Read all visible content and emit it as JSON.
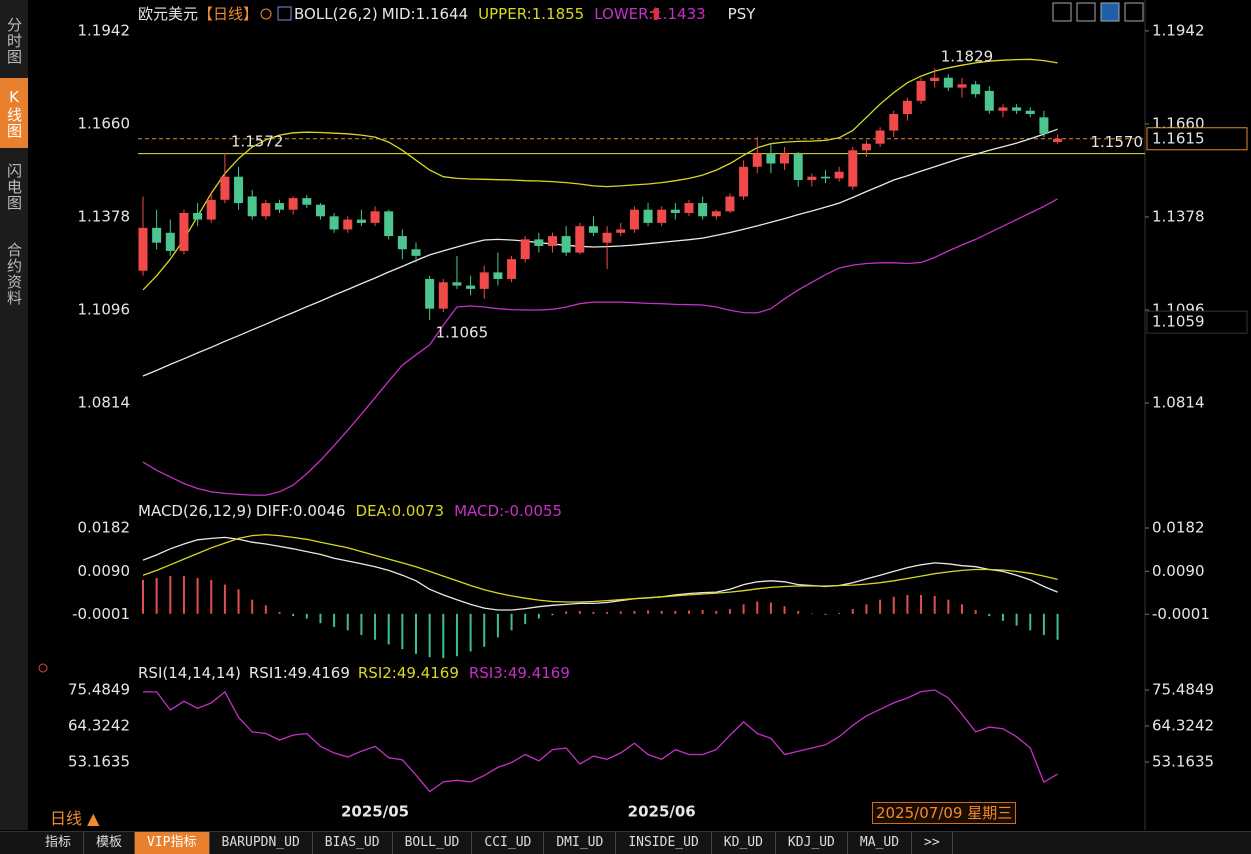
{
  "sidebar": [
    "分时图",
    "K线图",
    "闪电图",
    "合约资料"
  ],
  "period_label": "日线 ▲",
  "cursor_date": "2025/07/09 星期三",
  "toolbar": [
    "指标",
    "模板",
    "VIP指标",
    "BARUPDN_UD",
    "BIAS_UD",
    "BOLL_UD",
    "CCI_UD",
    "DMI_UD",
    "INSIDE_UD",
    "KD_UD",
    "KDJ_UD",
    "MA_UD",
    ">>"
  ],
  "chart_data": [
    {
      "type": "candlestick",
      "title": "欧元美元",
      "period": "【日线】",
      "indicator": "BOLL(26,2)",
      "next_indicator": "PSY",
      "up_color": "#f04a4a",
      "down_color": "#4cc58f",
      "ylim": [
        1.052,
        1.1975
      ],
      "yticks": [
        1.1942,
        {
          "value": 1.166,
          "label": "1.1660"
        },
        1.1378,
        1.1096,
        1.0814
      ],
      "categories": [
        null,
        null,
        null,
        null,
        null,
        null,
        null,
        null,
        null,
        null,
        null,
        null,
        null,
        null,
        null,
        null,
        null,
        "2025/05",
        null,
        null,
        null,
        null,
        null,
        null,
        null,
        null,
        null,
        null,
        null,
        null,
        null,
        null,
        null,
        null,
        null,
        null,
        null,
        null,
        "2025/06",
        null,
        null,
        null,
        null,
        null,
        null,
        null,
        null,
        null,
        null,
        null,
        null,
        null,
        null,
        null,
        null,
        null,
        null,
        null,
        null,
        null,
        null,
        null,
        null,
        null,
        null,
        null,
        null,
        null
      ],
      "open": [
        1.1215,
        1.1345,
        1.133,
        1.1275,
        1.139,
        1.137,
        1.143,
        1.15,
        1.144,
        1.138,
        1.142,
        1.14,
        1.1435,
        1.1415,
        1.138,
        1.134,
        1.137,
        1.136,
        1.1395,
        1.132,
        1.128,
        1.119,
        1.11,
        1.118,
        1.117,
        1.116,
        1.121,
        1.119,
        1.125,
        1.131,
        1.129,
        1.132,
        1.127,
        1.135,
        1.13,
        1.133,
        1.134,
        1.14,
        1.136,
        1.14,
        1.139,
        1.142,
        1.138,
        1.1395,
        1.144,
        1.153,
        1.157,
        1.154,
        1.157,
        1.149,
        1.15,
        1.1495,
        1.147,
        1.158,
        1.16,
        1.164,
        1.169,
        1.173,
        1.179,
        1.18,
        1.177,
        1.178,
        1.176,
        1.17,
        1.171,
        1.17,
        1.168,
        1.1605
      ],
      "high": [
        1.144,
        1.14,
        1.137,
        1.14,
        1.142,
        1.145,
        1.1572,
        1.153,
        1.146,
        1.143,
        1.143,
        1.144,
        1.1445,
        1.142,
        1.139,
        1.138,
        1.14,
        1.141,
        1.14,
        1.134,
        1.13,
        1.12,
        1.119,
        1.126,
        1.12,
        1.123,
        1.127,
        1.126,
        1.132,
        1.133,
        1.133,
        1.135,
        1.136,
        1.138,
        1.135,
        1.136,
        1.141,
        1.142,
        1.141,
        1.142,
        1.143,
        1.144,
        1.14,
        1.145,
        1.155,
        1.162,
        1.16,
        1.159,
        1.1575,
        1.151,
        1.152,
        1.153,
        1.159,
        1.161,
        1.165,
        1.17,
        1.174,
        1.18,
        1.1829,
        1.181,
        1.18,
        1.179,
        1.1775,
        1.172,
        1.172,
        1.171,
        1.17,
        1.1628
      ],
      "low": [
        1.12,
        1.128,
        1.126,
        1.1265,
        1.135,
        1.136,
        1.142,
        1.14,
        1.137,
        1.137,
        1.139,
        1.1385,
        1.1405,
        1.137,
        1.133,
        1.133,
        1.135,
        1.135,
        1.131,
        1.125,
        1.124,
        1.1065,
        1.109,
        1.116,
        1.114,
        1.113,
        1.117,
        1.118,
        1.124,
        1.127,
        1.127,
        1.126,
        1.1265,
        1.132,
        1.122,
        1.132,
        1.133,
        1.135,
        1.135,
        1.137,
        1.138,
        1.137,
        1.137,
        1.139,
        1.143,
        1.151,
        1.151,
        1.152,
        1.147,
        1.147,
        1.148,
        1.1485,
        1.146,
        1.156,
        1.159,
        1.162,
        1.167,
        1.172,
        1.177,
        1.176,
        1.174,
        1.174,
        1.169,
        1.168,
        1.169,
        1.168,
        1.162,
        1.16
      ],
      "close": [
        1.1345,
        1.13,
        1.1275,
        1.139,
        1.137,
        1.143,
        1.15,
        1.142,
        1.138,
        1.142,
        1.14,
        1.1435,
        1.1415,
        1.138,
        1.134,
        1.137,
        1.136,
        1.1395,
        1.132,
        1.128,
        1.126,
        1.11,
        1.118,
        1.117,
        1.116,
        1.121,
        1.119,
        1.125,
        1.131,
        1.129,
        1.132,
        1.127,
        1.135,
        1.133,
        1.133,
        1.134,
        1.14,
        1.136,
        1.14,
        1.139,
        1.142,
        1.138,
        1.1395,
        1.144,
        1.153,
        1.157,
        1.154,
        1.157,
        1.149,
        1.15,
        1.1495,
        1.1515,
        1.158,
        1.16,
        1.164,
        1.169,
        1.173,
        1.179,
        1.18,
        1.177,
        1.178,
        1.175,
        1.17,
        1.171,
        1.17,
        1.169,
        1.163,
        1.1615
      ],
      "series": [
        {
          "name": "MID:1.1644",
          "color": "#e8e8e8",
          "values": [
            1.0896,
            1.0913,
            1.0931,
            1.0948,
            1.0966,
            1.0983,
            1.1001,
            1.1018,
            1.1036,
            1.1053,
            1.1071,
            1.1088,
            1.1106,
            1.1123,
            1.1141,
            1.1158,
            1.1176,
            1.1193,
            1.1211,
            1.1228,
            1.1246,
            1.1263,
            1.1275,
            1.1287,
            1.1298,
            1.1308,
            1.131,
            1.1308,
            1.1305,
            1.13,
            1.1296,
            1.1292,
            1.1289,
            1.1287,
            1.1288,
            1.129,
            1.1293,
            1.1297,
            1.1301,
            1.1305,
            1.1309,
            1.1314,
            1.1322,
            1.1331,
            1.1341,
            1.1351,
            1.1362,
            1.1373,
            1.1385,
            1.1396,
            1.1408,
            1.142,
            1.1437,
            1.1455,
            1.1472,
            1.149,
            1.1503,
            1.1517,
            1.153,
            1.1544,
            1.1557,
            1.1568,
            1.158,
            1.1591,
            1.1602,
            1.1615,
            1.1629,
            1.1644
          ]
        },
        {
          "name": "UPPER:1.1855",
          "color": "#d8d820",
          "values": [
            1.1157,
            1.12,
            1.125,
            1.131,
            1.138,
            1.145,
            1.151,
            1.1555,
            1.159,
            1.1612,
            1.1626,
            1.1633,
            1.1635,
            1.1634,
            1.1632,
            1.163,
            1.1626,
            1.162,
            1.1605,
            1.158,
            1.155,
            1.152,
            1.15,
            1.1495,
            1.1493,
            1.1492,
            1.1491,
            1.149,
            1.1488,
            1.1487,
            1.1485,
            1.1482,
            1.1478,
            1.1472,
            1.147,
            1.1472,
            1.1475,
            1.1478,
            1.1482,
            1.1488,
            1.1495,
            1.1505,
            1.152,
            1.154,
            1.1565,
            1.1588,
            1.16,
            1.1605,
            1.1607,
            1.1608,
            1.161,
            1.1618,
            1.164,
            1.168,
            1.172,
            1.1755,
            1.1785,
            1.1805,
            1.182,
            1.183,
            1.1838,
            1.1845,
            1.185,
            1.1853,
            1.1855,
            1.1856,
            1.1852,
            1.1845
          ]
        },
        {
          "name": "LOWER:1.1433",
          "color": "#c530c5",
          "values": [
            1.0635,
            1.061,
            1.059,
            1.057,
            1.0555,
            1.0545,
            1.054,
            1.0537,
            1.0535,
            1.0535,
            1.0545,
            1.0565,
            1.06,
            1.064,
            1.0685,
            1.0732,
            1.078,
            1.083,
            1.088,
            1.0929,
            1.096,
            1.099,
            1.105,
            1.1105,
            1.1108,
            1.1105,
            1.11,
            1.1097,
            1.1096,
            1.1096,
            1.1098,
            1.1105,
            1.1115,
            1.112,
            1.112,
            1.112,
            1.1118,
            1.1116,
            1.1115,
            1.1113,
            1.1112,
            1.1111,
            1.1105,
            1.1095,
            1.1088,
            1.1087,
            1.11,
            1.113,
            1.1157,
            1.118,
            1.1203,
            1.1223,
            1.1232,
            1.1237,
            1.1239,
            1.1239,
            1.1237,
            1.124,
            1.1255,
            1.1275,
            1.1293,
            1.131,
            1.133,
            1.135,
            1.137,
            1.139,
            1.141,
            1.1433
          ]
        }
      ],
      "annotations": [
        "1.1572",
        "1.1829",
        "1.1065"
      ],
      "hlines": [
        {
          "value": 1.157,
          "label": "1.1570",
          "color": "#e8e030",
          "dashed": false,
          "box": false
        },
        {
          "value": 1.1615,
          "label": "1.1615",
          "color": "#e08a3a",
          "dashed": true,
          "box": true
        }
      ],
      "markers": [
        {
          "value": 1.1059,
          "label": "1.1059",
          "color": "#e08a3a"
        }
      ]
    },
    {
      "type": "line",
      "indicator": "MACD(26,12,9)",
      "ylim": [
        -0.0098,
        0.0199
      ],
      "yticks": [
        0.0182,
        {
          "value": 0.009,
          "label": "0.0090"
        },
        -0.0001
      ],
      "series": [
        {
          "name": "DIFF:0.0046",
          "color": "#e8e8e8",
          "type": "line",
          "values": [
            0.0114,
            0.0125,
            0.0138,
            0.0148,
            0.0157,
            0.016,
            0.0162,
            0.0158,
            0.0152,
            0.0148,
            0.0143,
            0.0138,
            0.0132,
            0.0126,
            0.0118,
            0.0112,
            0.0106,
            0.01,
            0.0092,
            0.0082,
            0.007,
            0.0052,
            0.004,
            0.003,
            0.002,
            0.0012,
            0.0008,
            0.0008,
            0.0011,
            0.0015,
            0.0018,
            0.002,
            0.0022,
            0.0022,
            0.0024,
            0.0028,
            0.0032,
            0.0034,
            0.0036,
            0.004,
            0.0043,
            0.0045,
            0.0046,
            0.0052,
            0.0062,
            0.0068,
            0.007,
            0.0068,
            0.0062,
            0.006,
            0.0058,
            0.006,
            0.0066,
            0.0074,
            0.0082,
            0.009,
            0.0098,
            0.0104,
            0.0108,
            0.0106,
            0.0102,
            0.01,
            0.0094,
            0.009,
            0.0082,
            0.0072,
            0.0058,
            0.0046
          ]
        },
        {
          "name": "DEA:0.0073",
          "color": "#d8d820",
          "type": "line",
          "values": [
            0.0082,
            0.0092,
            0.0104,
            0.0116,
            0.0128,
            0.014,
            0.015,
            0.016,
            0.0166,
            0.0168,
            0.0166,
            0.0162,
            0.0158,
            0.0152,
            0.0146,
            0.014,
            0.0132,
            0.0124,
            0.0116,
            0.0108,
            0.01,
            0.009,
            0.008,
            0.007,
            0.006,
            0.0051,
            0.0044,
            0.0038,
            0.0033,
            0.0029,
            0.0026,
            0.0025,
            0.0025,
            0.0026,
            0.0028,
            0.003,
            0.0032,
            0.0034,
            0.0036,
            0.0038,
            0.004,
            0.0042,
            0.0044,
            0.0046,
            0.0049,
            0.0053,
            0.0056,
            0.0058,
            0.0059,
            0.0059,
            0.0059,
            0.006,
            0.0061,
            0.0063,
            0.0066,
            0.007,
            0.0075,
            0.008,
            0.0085,
            0.0089,
            0.0092,
            0.0094,
            0.0094,
            0.0093,
            0.009,
            0.0086,
            0.008,
            0.0073
          ]
        },
        {
          "name": "MACD:-0.0055",
          "color": "#c530c5",
          "type": "bar",
          "up_color": "#e05050",
          "down_color": "#3fbf8f",
          "values": [
            0.0072,
            0.0076,
            0.008,
            0.008,
            0.0076,
            0.0072,
            0.0062,
            0.0052,
            0.003,
            0.0018,
            0.0004,
            -0.0005,
            -0.001,
            -0.002,
            -0.0028,
            -0.0035,
            -0.0045,
            -0.0055,
            -0.0065,
            -0.0075,
            -0.0085,
            -0.0092,
            -0.0094,
            -0.009,
            -0.008,
            -0.007,
            -0.005,
            -0.0035,
            -0.0022,
            -0.001,
            -0.0003,
            0.0005,
            0.0006,
            0.0004,
            0.0004,
            0.0005,
            0.0006,
            0.0007,
            0.0006,
            0.0006,
            0.0007,
            0.0008,
            0.0006,
            0.001,
            0.002,
            0.0026,
            0.0024,
            0.0016,
            0.0006,
            0.0001,
            -0.0002,
            0.0002,
            0.001,
            0.002,
            0.003,
            0.0036,
            0.004,
            0.004,
            0.0038,
            0.003,
            0.002,
            0.0008,
            -0.0005,
            -0.0015,
            -0.0025,
            -0.0035,
            -0.0045,
            -0.0055
          ]
        }
      ]
    },
    {
      "type": "line",
      "indicator": "RSI(14,14,14)",
      "ylim": [
        41.38,
        78.59
      ],
      "yticks": [
        75.4849,
        64.3242,
        53.1635
      ],
      "legend_extra": [
        {
          "text": "RSI1:49.4169",
          "color": "#e8e8e8"
        },
        {
          "text": "RSI2:49.4169",
          "color": "#d8d820"
        }
      ],
      "series": [
        {
          "name": "RSI3:49.4169",
          "color": "#c530c5",
          "type": "line",
          "values": [
            74.9,
            74.9,
            69.3,
            72.0,
            69.8,
            71.5,
            74.9,
            67.0,
            62.5,
            62.0,
            60.0,
            61.5,
            62.0,
            58.0,
            56.0,
            54.7,
            56.5,
            58.0,
            54.5,
            53.8,
            49.1,
            44.0,
            47.0,
            47.5,
            47.0,
            49.0,
            51.5,
            53.0,
            55.5,
            53.5,
            57.0,
            57.5,
            52.5,
            55.0,
            54.0,
            56.0,
            59.0,
            55.5,
            54.0,
            57.0,
            55.5,
            55.5,
            57.0,
            61.5,
            65.6,
            62.0,
            60.5,
            55.5,
            56.5,
            57.5,
            58.5,
            61.0,
            64.5,
            67.5,
            69.5,
            71.5,
            73.0,
            75.0,
            75.5,
            73.0,
            68.0,
            62.5,
            64.0,
            63.5,
            61.0,
            57.5,
            46.9,
            49.4169
          ]
        }
      ]
    }
  ]
}
